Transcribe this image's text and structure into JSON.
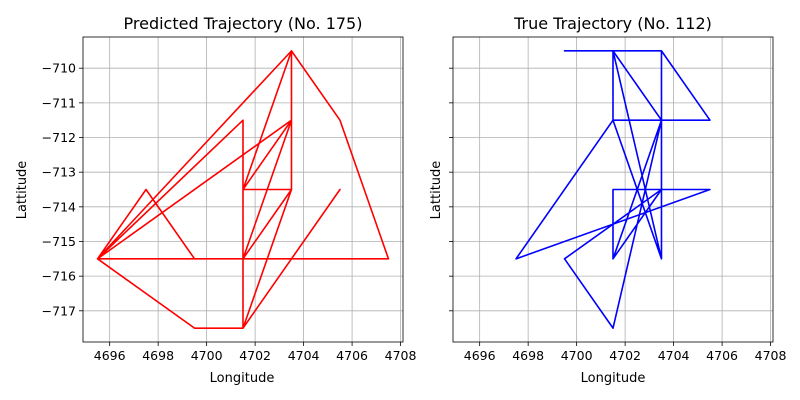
{
  "chart_data": [
    {
      "type": "line",
      "title": "Predicted Trajectory (No. 175)",
      "xlabel": "Longitude",
      "ylabel": "Lattitude",
      "xlim": [
        4694.9,
        4708.1
      ],
      "ylim": [
        -717.9,
        -709.1
      ],
      "xticks": [
        4696,
        4698,
        4700,
        4702,
        4704,
        4706,
        4708
      ],
      "yticks": [
        -710,
        -711,
        -712,
        -713,
        -714,
        -715,
        -716,
        -717
      ],
      "xtick_labels": [
        "4696",
        "4698",
        "4700",
        "4702",
        "4704",
        "4706",
        "4708"
      ],
      "ytick_labels": [
        "−710",
        "−711",
        "−712",
        "−713",
        "−714",
        "−715",
        "−716",
        "−717"
      ],
      "grid": true,
      "color": "#ff0000",
      "series": [
        {
          "name": "predicted",
          "points": [
            [
              4705.5,
              -713.5
            ],
            [
              4701.5,
              -717.5
            ],
            [
              4703.5,
              -713.5
            ],
            [
              4701.5,
              -715.5
            ],
            [
              4701.5,
              -711.5
            ],
            [
              4701.5,
              -713.5
            ],
            [
              4703.5,
              -713.5
            ],
            [
              4703.5,
              -711.5
            ],
            [
              4695.5,
              -715.5
            ],
            [
              4697.5,
              -713.5
            ],
            [
              4699.5,
              -715.5
            ],
            [
              4695.5,
              -715.5
            ],
            [
              4707.5,
              -715.5
            ],
            [
              4705.5,
              -711.5
            ],
            [
              4703.5,
              -709.5
            ],
            [
              4695.5,
              -715.5
            ],
            [
              4699.5,
              -717.5
            ],
            [
              4701.5,
              -717.5
            ],
            [
              4703.5,
              -713.5
            ],
            [
              4703.5,
              -709.5
            ],
            [
              4701.5,
              -713.5
            ],
            [
              4703.5,
              -711.5
            ],
            [
              4701.5,
              -715.5
            ],
            [
              4701.5,
              -717.5
            ],
            [
              4701.5,
              -711.5
            ],
            [
              4695.5,
              -715.5
            ]
          ]
        }
      ]
    },
    {
      "type": "line",
      "title": "True Trajectory (No. 112)",
      "xlabel": "Longitude",
      "ylabel": "Lattitude",
      "xlim": [
        4694.9,
        4708.1
      ],
      "ylim": [
        -717.9,
        -709.1
      ],
      "xticks": [
        4696,
        4698,
        4700,
        4702,
        4704,
        4706,
        4708
      ],
      "yticks": [
        -710,
        -711,
        -712,
        -713,
        -714,
        -715,
        -716,
        -717
      ],
      "xtick_labels": [
        "4696",
        "4698",
        "4700",
        "4702",
        "4704",
        "4706",
        "4708"
      ],
      "ytick_labels": [],
      "grid": true,
      "color": "#0000ff",
      "series": [
        {
          "name": "true",
          "points": [
            [
              4699.5,
              -709.5
            ],
            [
              4703.5,
              -709.5
            ],
            [
              4703.5,
              -711.5
            ],
            [
              4701.5,
              -711.5
            ],
            [
              4705.5,
              -711.5
            ],
            [
              4703.5,
              -709.5
            ],
            [
              4701.5,
              -709.5
            ],
            [
              4701.5,
              -711.5
            ],
            [
              4703.5,
              -715.5
            ],
            [
              4703.5,
              -713.5
            ],
            [
              4701.5,
              -713.5
            ],
            [
              4701.5,
              -715.5
            ],
            [
              4703.5,
              -711.5
            ],
            [
              4703.5,
              -713.5
            ],
            [
              4705.5,
              -713.5
            ],
            [
              4697.5,
              -715.5
            ],
            [
              4701.5,
              -711.5
            ],
            [
              4703.5,
              -711.5
            ],
            [
              4701.5,
              -717.5
            ],
            [
              4699.5,
              -715.5
            ],
            [
              4703.5,
              -713.5
            ],
            [
              4701.5,
              -715.5
            ],
            [
              4701.5,
              -713.5
            ],
            [
              4703.5,
              -713.5
            ],
            [
              4703.5,
              -711.5
            ],
            [
              4701.5,
              -709.5
            ],
            [
              4703.5,
              -715.5
            ]
          ]
        }
      ]
    }
  ]
}
